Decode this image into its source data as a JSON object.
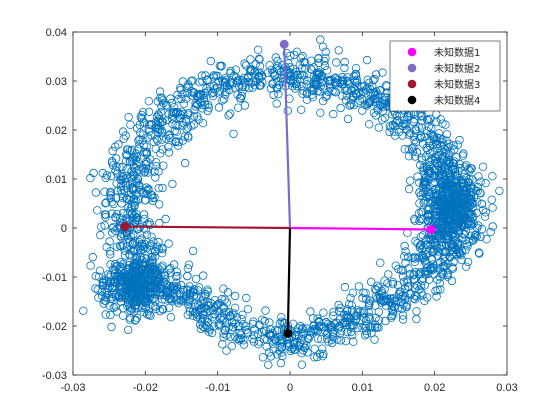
{
  "chart_data": {
    "type": "scatter",
    "title": "",
    "xlabel": "",
    "ylabel": "",
    "xlim": [
      -0.03,
      0.03
    ],
    "ylim": [
      -0.03,
      0.04
    ],
    "xticks": [
      "-0.03",
      "-0.02",
      "-0.01",
      "0",
      "0.01",
      "0.02",
      "0.03"
    ],
    "yticks": [
      "-0.03",
      "-0.02",
      "-0.01",
      "0",
      "0.01",
      "0.02",
      "0.03",
      "0.04"
    ],
    "grid": false,
    "legend_position": "top-right",
    "scatter_color": "#0072BD",
    "scatter_marker": "open-circle",
    "scatter_shape": {
      "description_free_params": true,
      "n_points": 3000,
      "ring": {
        "cx": 0.0,
        "cy": 0.008,
        "rx": 0.023,
        "ry": 0.026
      },
      "top_y": 0.031,
      "bottom_y": -0.023,
      "left_cluster": [
        -0.021,
        -0.012
      ],
      "right_cluster": [
        0.022,
        0.006
      ]
    },
    "series": [
      {
        "name": "未知数据1",
        "color": "#FF00FF",
        "x": [
          0,
          0.0195
        ],
        "y": [
          0,
          -0.0003
        ]
      },
      {
        "name": "未知数据2",
        "color": "#7E6BC9",
        "x": [
          0,
          -0.0008
        ],
        "y": [
          0,
          0.0375
        ]
      },
      {
        "name": "未知数据3",
        "color": "#A2142F",
        "x": [
          0,
          -0.0228
        ],
        "y": [
          0,
          0.0003
        ]
      },
      {
        "name": "未知数据4",
        "color": "#000000",
        "x": [
          0,
          -0.0003
        ],
        "y": [
          0,
          -0.0215
        ]
      }
    ]
  }
}
